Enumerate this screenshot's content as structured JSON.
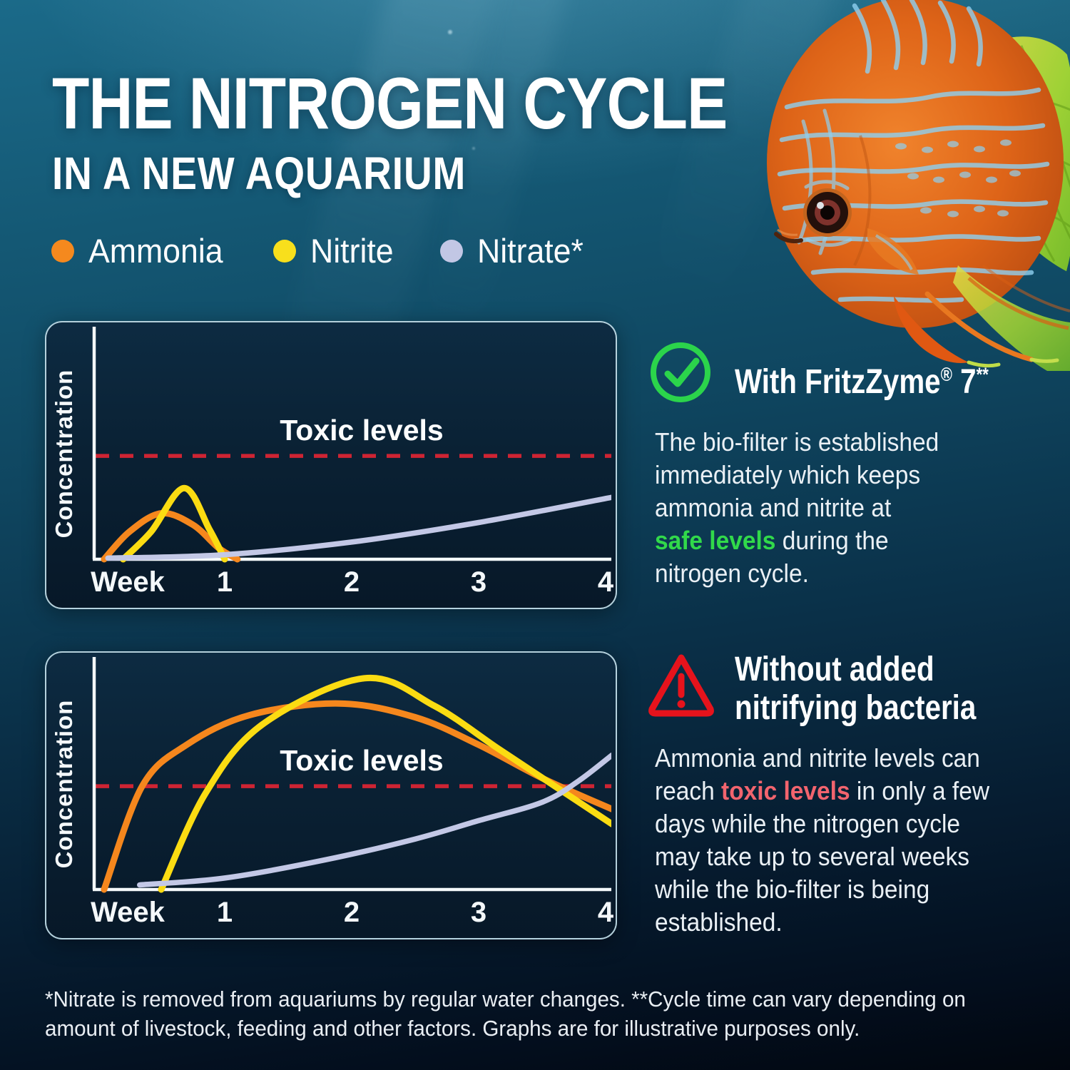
{
  "header": {
    "title_line1": "THE NITROGEN CYCLE",
    "title_line2": "IN A NEW AQUARIUM"
  },
  "legend": {
    "items": [
      {
        "label": "Ammonia",
        "color": "#F5891E"
      },
      {
        "label": "Nitrite",
        "color": "#F8DF1C"
      },
      {
        "label": "Nitrate*",
        "color": "#C2C7E5"
      }
    ]
  },
  "sections": {
    "safe": {
      "icon": "check-circle-icon",
      "icon_color": "#2BD44B",
      "heading_segments": [
        {
          "t": "With FritzZyme"
        },
        {
          "t": "®",
          "sup": true
        },
        {
          "t": " 7"
        },
        {
          "t": "**",
          "sup": true
        }
      ],
      "body_segments": [
        {
          "t": "The bio-filter is established\nimmediately which keeps\nammonia and nitrite at\n"
        },
        {
          "t": "safe levels",
          "c": "#31D94A",
          "b": true
        },
        {
          "t": " during the\nnitrogen cycle."
        }
      ]
    },
    "risk": {
      "icon": "warning-triangle-icon",
      "icon_color": "#E6131C",
      "heading_segments": [
        {
          "t": "Without added\nnitrifying bacteria"
        }
      ],
      "body_segments": [
        {
          "t": "Ammonia and nitrite levels can\nreach "
        },
        {
          "t": "toxic levels",
          "c": "#F2646E",
          "b": true
        },
        {
          "t": " in only a few\ndays while the nitrogen cycle\nmay take up to several weeks\nwhile the bio-filter is being\nestablished."
        }
      ]
    }
  },
  "footnote": {
    "segments": [
      {
        "t": "*Nitrate is removed from aquariums by regular water changes. **Cycle time can vary depending on\namount of livestock, feeding and other factors. Graphs are for illustrative purposes only."
      }
    ]
  },
  "chart_data": [
    {
      "type": "line",
      "panel": "with-fritzzyme-7",
      "x_axis": {
        "label": "Week",
        "ticks": [
          "1",
          "2",
          "3",
          "4"
        ],
        "range_weeks": [
          0,
          4.05
        ]
      },
      "y_axis": {
        "label": "Concentration",
        "range_fraction": [
          0,
          1
        ]
      },
      "grid": false,
      "toxic_line": {
        "label": "Toxic levels",
        "y": 0.45,
        "color": "#CE2433"
      },
      "series": [
        {
          "name": "Ammonia",
          "color": "#F5871D",
          "points": [
            [
              0.05,
              0
            ],
            [
              0.25,
              0.12
            ],
            [
              0.5,
              0.2
            ],
            [
              0.75,
              0.15
            ],
            [
              0.95,
              0.05
            ],
            [
              1.1,
              0
            ]
          ]
        },
        {
          "name": "Nitrite",
          "color": "#FBDC12",
          "points": [
            [
              0.2,
              0
            ],
            [
              0.42,
              0.12
            ],
            [
              0.68,
              0.31
            ],
            [
              0.88,
              0.13
            ],
            [
              1.0,
              0
            ]
          ]
        },
        {
          "name": "Nitrate",
          "color": "#C3C8E6",
          "points": [
            [
              0.08,
              0.005
            ],
            [
              1.0,
              0.02
            ],
            [
              2.0,
              0.075
            ],
            [
              3.0,
              0.16
            ],
            [
              4.05,
              0.27
            ]
          ]
        }
      ]
    },
    {
      "type": "line",
      "panel": "without-nitrifying-bacteria",
      "x_axis": {
        "label": "Week",
        "ticks": [
          "1",
          "2",
          "3",
          "4"
        ],
        "range_weeks": [
          0,
          4.05
        ]
      },
      "y_axis": {
        "label": "Concentration",
        "range_fraction": [
          0,
          1
        ]
      },
      "grid": false,
      "toxic_line": {
        "label": "Toxic levels",
        "y": 0.45,
        "color": "#CE2433"
      },
      "series": [
        {
          "name": "Ammonia",
          "color": "#F5871D",
          "points": [
            [
              0.05,
              0
            ],
            [
              0.35,
              0.45
            ],
            [
              0.7,
              0.63
            ],
            [
              1.2,
              0.76
            ],
            [
              1.9,
              0.81
            ],
            [
              2.5,
              0.75
            ],
            [
              3.0,
              0.63
            ],
            [
              3.5,
              0.485
            ],
            [
              4.05,
              0.35
            ]
          ]
        },
        {
          "name": "Nitrite",
          "color": "#FBDC12",
          "points": [
            [
              0.5,
              0
            ],
            [
              0.85,
              0.42
            ],
            [
              1.3,
              0.72
            ],
            [
              2.1,
              0.92
            ],
            [
              2.65,
              0.8
            ],
            [
              3.15,
              0.615
            ],
            [
              3.6,
              0.45
            ],
            [
              4.05,
              0.285
            ]
          ]
        },
        {
          "name": "Nitrate",
          "color": "#C3C8E6",
          "points": [
            [
              0.33,
              0.02
            ],
            [
              1.0,
              0.05
            ],
            [
              1.8,
              0.13
            ],
            [
              2.5,
              0.22
            ],
            [
              3.0,
              0.3
            ],
            [
              3.5,
              0.38
            ],
            [
              3.78,
              0.47
            ],
            [
              4.05,
              0.585
            ]
          ]
        }
      ]
    }
  ]
}
